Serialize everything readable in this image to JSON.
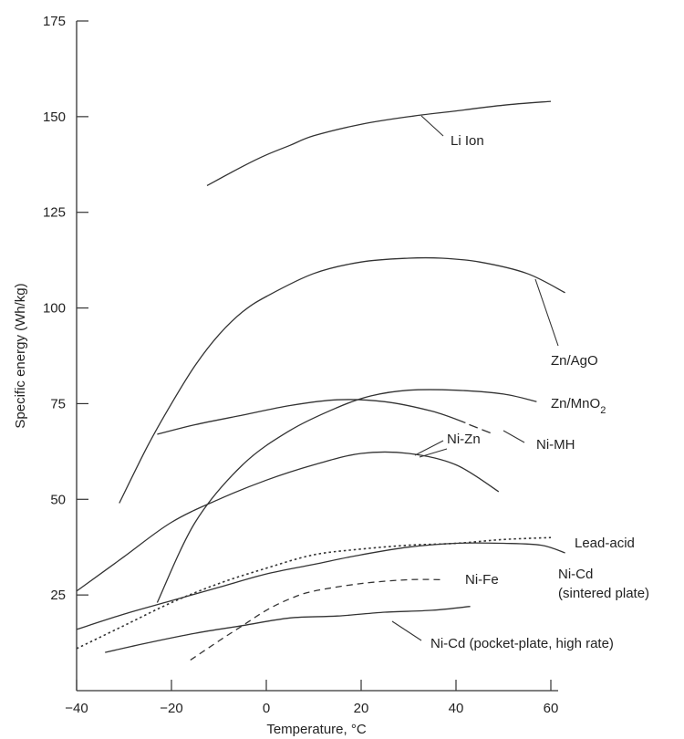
{
  "chart_data": {
    "type": "line",
    "title": "",
    "xlabel": "Temperature, °C",
    "ylabel": "Specific energy (Wh/kg)",
    "xlim": [
      -40,
      62
    ],
    "ylim": [
      0,
      175
    ],
    "xticks": [
      "−40",
      "−20",
      "0",
      "20",
      "40",
      "60"
    ],
    "yticks": [
      "175",
      "150",
      "125",
      "100",
      "75",
      "50",
      "25"
    ],
    "grid": false,
    "colors": {
      "line": "#333333",
      "text": "#222222"
    },
    "series": [
      {
        "name": "Li Ion",
        "x": [
          -12.5,
          -5,
          0,
          5,
          10,
          20,
          30,
          40,
          50,
          60
        ],
        "y": [
          132,
          137,
          140,
          142.5,
          145,
          148,
          150,
          151.5,
          153,
          154
        ],
        "style": "solid"
      },
      {
        "name": "Zn/AgO",
        "x": [
          -31,
          -25,
          -20,
          -15,
          -10,
          -5,
          0,
          10,
          20,
          30,
          37,
          45,
          55,
          63
        ],
        "y": [
          49,
          64,
          75,
          85,
          93,
          99,
          103,
          109,
          112,
          113,
          113,
          112,
          109,
          104
        ],
        "style": "solid"
      },
      {
        "name": "Zn/MnO₂",
        "x": [
          -23,
          -15,
          -5,
          5,
          15,
          22,
          30,
          40,
          50,
          57
        ],
        "y": [
          23,
          44,
          59,
          68,
          74,
          77,
          78.5,
          78.5,
          77.5,
          75.5
        ],
        "style": "solid"
      },
      {
        "name": "Ni-MH",
        "x": [
          -23,
          -15,
          -5,
          5,
          15,
          25,
          35,
          42,
          48
        ],
        "y": [
          67,
          69.5,
          72,
          74.5,
          76,
          75.5,
          73,
          70,
          67
        ],
        "style": "dashed-tail"
      },
      {
        "name": "Ni-Zn",
        "x": [
          -40,
          -30,
          -20,
          -10,
          0,
          10,
          20,
          30,
          40,
          49
        ],
        "y": [
          26,
          35,
          44,
          50,
          55,
          59,
          62,
          62,
          59,
          52
        ],
        "style": "solid"
      },
      {
        "name": "Lead-acid",
        "x": [
          -40,
          -30,
          -20,
          -10,
          0,
          10,
          20,
          30,
          40,
          50,
          60
        ],
        "y": [
          11,
          17,
          23,
          28,
          32,
          35.5,
          37,
          38,
          38.5,
          39.5,
          40
        ],
        "style": "dotted"
      },
      {
        "name": "Ni-Cd (sintered plate)",
        "x": [
          -40,
          -30,
          -20,
          -10,
          0,
          10,
          20,
          30,
          40,
          50,
          58,
          63
        ],
        "y": [
          16,
          20,
          23.5,
          27,
          30.5,
          33,
          35.5,
          37.5,
          38.5,
          38.5,
          38,
          36
        ],
        "style": "solid"
      },
      {
        "name": "Ni-Fe",
        "x": [
          -16,
          -10,
          -5,
          0,
          5,
          10,
          20,
          30,
          37
        ],
        "y": [
          8,
          13,
          17,
          21,
          24,
          26,
          28,
          29,
          29
        ],
        "style": "dashed"
      },
      {
        "name": "Ni-Cd (pocket-plate, high rate)",
        "x": [
          -34,
          -25,
          -15,
          -5,
          5,
          15,
          25,
          35,
          43
        ],
        "y": [
          10,
          12.5,
          15,
          17,
          19,
          19.5,
          20.5,
          21,
          22
        ],
        "style": "solid"
      }
    ],
    "labels": {
      "li_ion": "Li Ion",
      "zn_ago": "Zn/AgO",
      "zn_mno2_main": "Zn/MnO",
      "zn_mno2_sub": "2",
      "ni_mh": "Ni-MH",
      "ni_zn": "Ni-Zn",
      "lead_acid": "Lead-acid",
      "ni_cd_sintered_line1": "Ni-Cd",
      "ni_cd_sintered_line2": "(sintered plate)",
      "ni_fe": "Ni-Fe",
      "ni_cd_pocket": "Ni-Cd (pocket-plate, high rate)"
    }
  }
}
